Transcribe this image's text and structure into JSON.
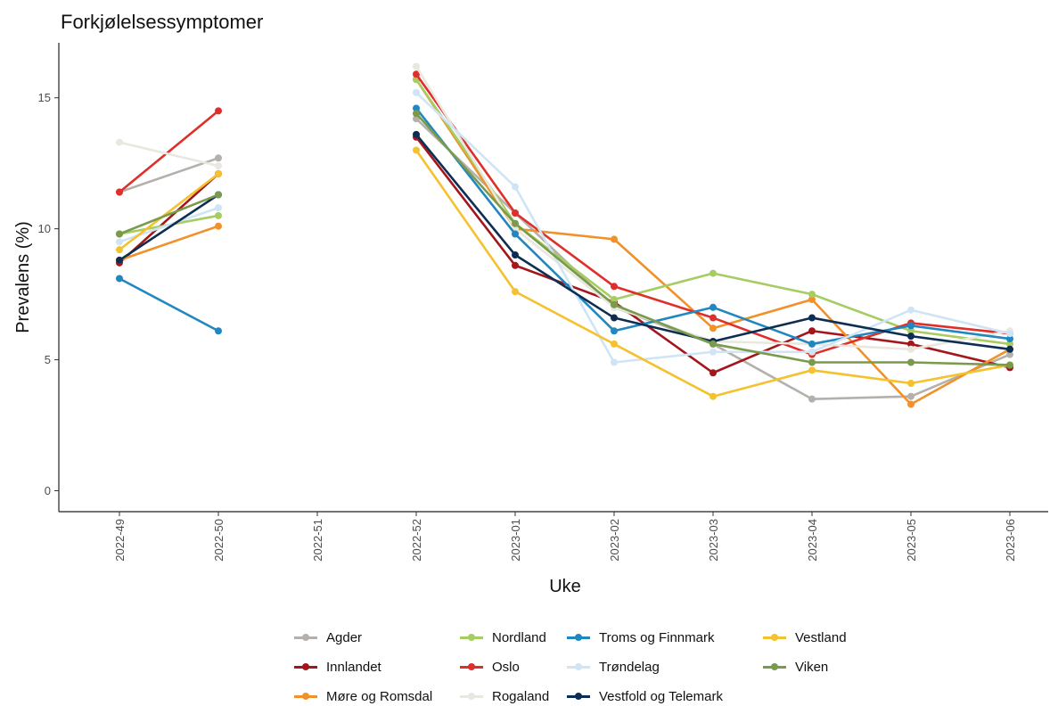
{
  "chart_data": {
    "type": "line",
    "title": "Forkjølelsessymptomer",
    "xlabel": "Uke",
    "ylabel": "Prevalens (%)",
    "categories": [
      "2022-49",
      "2022-50",
      "2022-51",
      "2022-52",
      "2023-01",
      "2023-02",
      "2023-03",
      "2023-04",
      "2023-05",
      "2023-06"
    ],
    "ylim": [
      -0.8,
      17.1
    ],
    "yticks": [
      0,
      5,
      10,
      15
    ],
    "grid": false,
    "legend_position": "bottom",
    "series": [
      {
        "name": "Agder",
        "color": "#b4b0ac",
        "values": [
          11.4,
          12.7,
          null,
          14.2,
          10.6,
          7.0,
          5.6,
          3.5,
          3.6,
          5.2
        ]
      },
      {
        "name": "Innlandet",
        "color": "#a3171c",
        "values": [
          8.7,
          12.1,
          null,
          13.5,
          8.6,
          7.2,
          4.5,
          6.1,
          5.6,
          4.7
        ]
      },
      {
        "name": "Møre og Romsdal",
        "color": "#f0912a",
        "values": [
          8.8,
          10.1,
          null,
          15.7,
          10.0,
          9.6,
          6.2,
          7.3,
          3.3,
          5.4
        ]
      },
      {
        "name": "Nordland",
        "color": "#a6cc62",
        "values": [
          9.8,
          10.5,
          null,
          15.7,
          10.2,
          7.3,
          8.3,
          7.5,
          6.1,
          5.6
        ]
      },
      {
        "name": "Oslo",
        "color": "#e02f2a",
        "values": [
          11.4,
          14.5,
          null,
          15.9,
          10.6,
          7.8,
          6.6,
          5.2,
          6.4,
          6.0
        ]
      },
      {
        "name": "Rogaland",
        "color": "#e8e8e0",
        "values": [
          13.3,
          12.4,
          null,
          16.2,
          10.0,
          7.0,
          5.7,
          5.6,
          5.4,
          6.1
        ]
      },
      {
        "name": "Troms og Finnmark",
        "color": "#2087c1",
        "values": [
          8.1,
          6.1,
          null,
          14.6,
          9.8,
          6.1,
          7.0,
          5.6,
          6.3,
          5.8
        ]
      },
      {
        "name": "Trøndelag",
        "color": "#cfe4f5",
        "values": [
          9.5,
          10.8,
          null,
          15.2,
          11.6,
          4.9,
          5.3,
          5.3,
          6.9,
          6.0
        ]
      },
      {
        "name": "Vestfold og Telemark",
        "color": "#0d2e52",
        "values": [
          8.8,
          11.3,
          null,
          13.6,
          9.0,
          6.6,
          5.7,
          6.6,
          5.9,
          5.4
        ]
      },
      {
        "name": "Vestland",
        "color": "#f4c22e",
        "values": [
          9.2,
          12.1,
          null,
          13.0,
          7.6,
          5.6,
          3.6,
          4.6,
          4.1,
          4.8
        ]
      },
      {
        "name": "Viken",
        "color": "#7a9a4c",
        "values": [
          9.8,
          11.3,
          null,
          14.4,
          10.2,
          7.1,
          5.6,
          4.9,
          4.9,
          4.8
        ]
      }
    ]
  }
}
